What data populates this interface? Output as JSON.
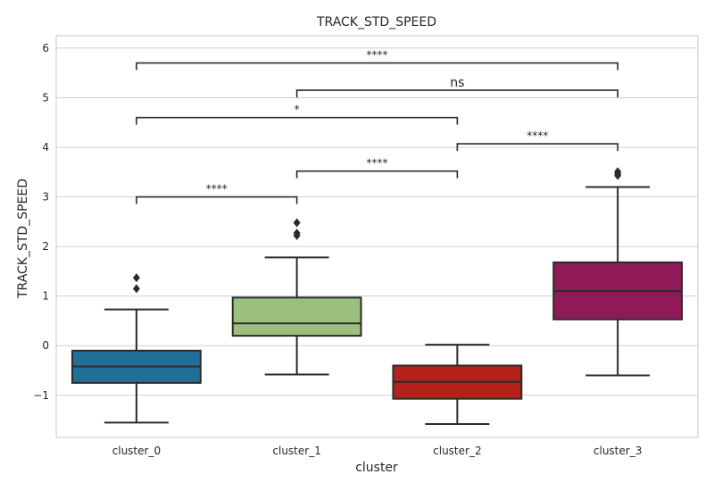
{
  "chart_data": {
    "type": "box",
    "title": "TRACK_STD_SPEED",
    "xlabel": "cluster",
    "ylabel": "TRACK_STD_SPEED",
    "ylim": [
      -1.85,
      6.25
    ],
    "yticks": [
      {
        "value": -1,
        "label": "−1"
      },
      {
        "value": 0,
        "label": "0"
      },
      {
        "value": 1,
        "label": "1"
      },
      {
        "value": 2,
        "label": "2"
      },
      {
        "value": 3,
        "label": "3"
      },
      {
        "value": 4,
        "label": "4"
      },
      {
        "value": 5,
        "label": "5"
      },
      {
        "value": 6,
        "label": "6"
      }
    ],
    "grid": true,
    "categories": [
      "cluster_0",
      "cluster_1",
      "cluster_2",
      "cluster_3"
    ],
    "boxes": [
      {
        "category": "cluster_0",
        "color": "#1f6f98",
        "whisker_low": -1.55,
        "q1": -0.75,
        "median": -0.42,
        "q3": -0.1,
        "whisker_high": 0.73,
        "outliers": [
          1.15,
          1.37
        ]
      },
      {
        "category": "cluster_1",
        "color": "#9cbf7e",
        "whisker_low": -0.58,
        "q1": 0.2,
        "median": 0.45,
        "q3": 0.97,
        "whisker_high": 1.78,
        "outliers": [
          2.22,
          2.27,
          2.48
        ]
      },
      {
        "category": "cluster_2",
        "color": "#b42219",
        "whisker_low": -1.58,
        "q1": -1.07,
        "median": -0.73,
        "q3": -0.4,
        "whisker_high": 0.02,
        "outliers": []
      },
      {
        "category": "cluster_3",
        "color": "#901a57",
        "whisker_low": -0.6,
        "q1": 0.53,
        "median": 1.1,
        "q3": 1.68,
        "whisker_high": 3.2,
        "outliers": [
          3.43,
          3.47,
          3.51
        ]
      }
    ],
    "annotations": [
      {
        "from": "cluster_0",
        "to": "cluster_1",
        "y": 3.0,
        "label": "****"
      },
      {
        "from": "cluster_1",
        "to": "cluster_2",
        "y": 3.52,
        "label": "****"
      },
      {
        "from": "cluster_2",
        "to": "cluster_3",
        "y": 4.07,
        "label": "****"
      },
      {
        "from": "cluster_0",
        "to": "cluster_2",
        "y": 4.6,
        "label": "*"
      },
      {
        "from": "cluster_1",
        "to": "cluster_3",
        "y": 5.15,
        "label": "ns"
      },
      {
        "from": "cluster_0",
        "to": "cluster_3",
        "y": 5.7,
        "label": "****"
      }
    ]
  }
}
